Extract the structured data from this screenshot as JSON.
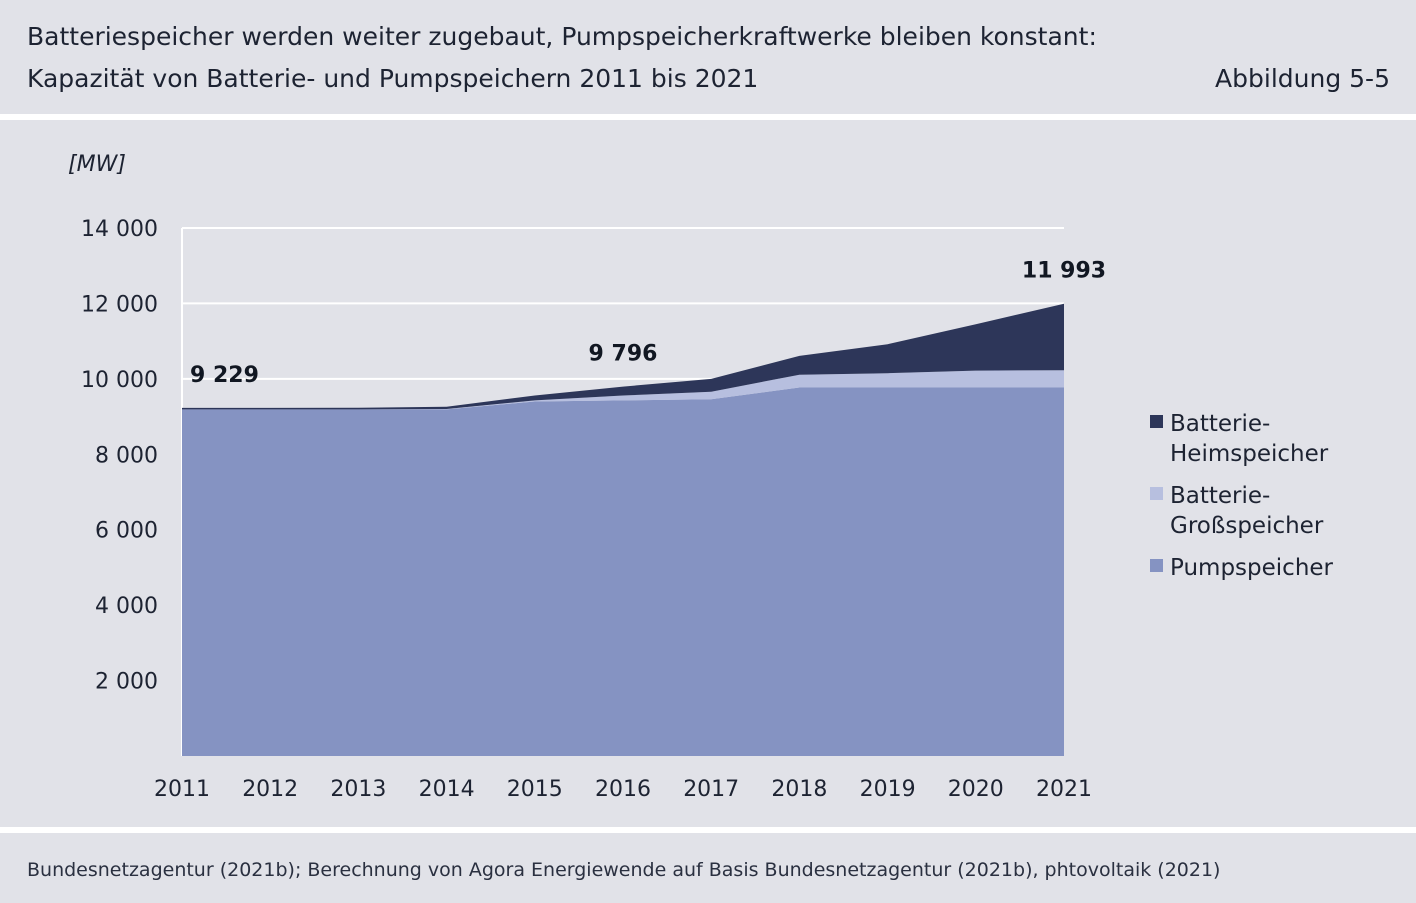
{
  "header": {
    "title_line1": "Batteriespeicher werden weiter zugebaut, Pumpspeicherkraftwerke bleiben konstant:",
    "title_line2": "Kapazität von Batterie- und Pumpspeichern 2011 bis 2021",
    "figure_label": "Abbildung 5-5"
  },
  "footer": {
    "source": "Bundesnetzagentur (2021b); Berechnung von Agora Energiewende auf Basis Bundesnetzagentur (2021b), phtovoltaik (2021)"
  },
  "chart_data": {
    "type": "area",
    "stacked": true,
    "unit_label": "[MW]",
    "x": [
      "2011",
      "2012",
      "2013",
      "2014",
      "2015",
      "2016",
      "2017",
      "2018",
      "2019",
      "2020",
      "2021"
    ],
    "ylim": [
      0,
      14000
    ],
    "yticks": [
      2000,
      4000,
      6000,
      8000,
      10000,
      12000,
      14000
    ],
    "ytick_labels": [
      "2 000",
      "4 000",
      "6 000",
      "8 000",
      "10 000",
      "12 000",
      "14 000"
    ],
    "grid": true,
    "legend_position": "right",
    "series": [
      {
        "name": "Pumpspeicher",
        "color": "#8593c2",
        "values": [
          9190,
          9190,
          9190,
          9190,
          9400,
          9430,
          9460,
          9770,
          9770,
          9770,
          9770
        ]
      },
      {
        "name": "Batterie-Großspeicher",
        "color": "#b7bfdf",
        "values": [
          0,
          0,
          0,
          10,
          30,
          130,
          200,
          340,
          380,
          450,
          460
        ]
      },
      {
        "name": "Batterie-Heimspeicher",
        "color": "#2d3659",
        "values": [
          39,
          40,
          45,
          60,
          130,
          236,
          340,
          500,
          770,
          1230,
          1763
        ]
      }
    ],
    "legend": [
      {
        "label_lines": [
          "Batterie-",
          "Heimspeicher"
        ],
        "color": "#2d3659"
      },
      {
        "label_lines": [
          "Batterie-",
          "Großspeicher"
        ],
        "color": "#b7bfdf"
      },
      {
        "label_lines": [
          "Pumpspeicher"
        ],
        "color": "#8593c2"
      }
    ],
    "annotations": [
      {
        "x": "2011",
        "value": 9229,
        "text": "9 229"
      },
      {
        "x": "2016",
        "value": 9796,
        "text": "9 796"
      },
      {
        "x": "2021",
        "value": 11993,
        "text": "11 993"
      }
    ]
  }
}
